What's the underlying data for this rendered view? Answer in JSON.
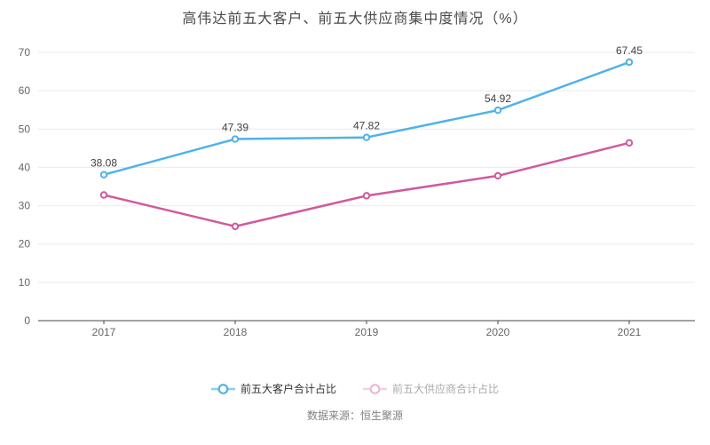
{
  "title": "高伟达前五大客户、前五大供应商集中度情况（%）",
  "source_note": "数据来源：恒生聚源",
  "colors": {
    "customer_line": "#4fb2e9",
    "supplier_line": "#cf5a9e",
    "grid_line": "#e4ebf2",
    "axis_line": "#45474b",
    "axis_label": "#666666",
    "data_label": "#404040",
    "title_text": "#4a4a4a",
    "legend_active_text": "#333333",
    "legend_muted_text": "#aaaaaa",
    "background": "#ffffff"
  },
  "chart_data": {
    "type": "line",
    "title": "高伟达前五大客户、前五大供应商集中度情况（%）",
    "categories": [
      "2017",
      "2018",
      "2019",
      "2020",
      "2021"
    ],
    "series": [
      {
        "name": "前五大客户合计占比",
        "values": [
          38.08,
          47.39,
          47.82,
          54.92,
          67.45
        ],
        "color": "#4fb2e9",
        "show_labels": true,
        "legend_muted": false
      },
      {
        "name": "前五大供应商合计占比",
        "values": [
          32.8,
          24.6,
          32.6,
          37.8,
          46.4
        ],
        "color": "#cf5a9e",
        "show_labels": false,
        "legend_muted": true
      }
    ],
    "xlabel": "",
    "ylabel": "",
    "ylim": [
      0,
      70
    ],
    "y_ticks": [
      0,
      10,
      20,
      30,
      40,
      50,
      60,
      70
    ],
    "grid": true,
    "legend_position": "bottom"
  }
}
